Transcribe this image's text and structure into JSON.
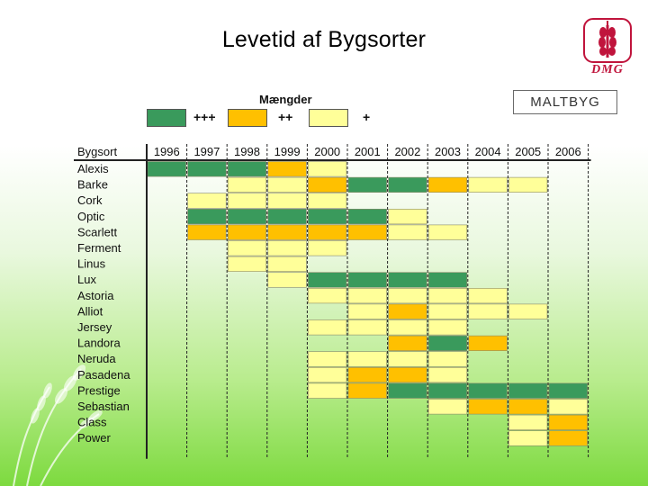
{
  "title": "Levetid af Bygsorter",
  "logo_text": "DMG",
  "badge": "MALTBYG",
  "legend": {
    "title": "Mængder",
    "items": [
      {
        "label": "+++",
        "color": "#3a9a5c"
      },
      {
        "label": "++",
        "color": "#ffc000"
      },
      {
        "label": "+",
        "color": "#ffff99"
      }
    ]
  },
  "chart_data": {
    "type": "table",
    "title": "Levetid af Bygsorter",
    "row_header": "Bygsort",
    "years": [
      "1996",
      "1997",
      "1998",
      "1999",
      "2000",
      "2001",
      "2002",
      "2003",
      "2004",
      "2005",
      "2006"
    ],
    "levels": {
      "3": "+++",
      "2": "++",
      "1": "+"
    },
    "colors": {
      "3": "#3a9a5c",
      "2": "#ffc000",
      "1": "#ffff99"
    },
    "varieties": [
      {
        "name": "Alexis",
        "values": [
          3,
          3,
          3,
          2,
          1,
          0,
          0,
          0,
          0,
          0,
          0
        ]
      },
      {
        "name": "Barke",
        "values": [
          0,
          0,
          1,
          1,
          2,
          3,
          3,
          2,
          1,
          1,
          0
        ]
      },
      {
        "name": "Cork",
        "values": [
          0,
          1,
          1,
          1,
          1,
          0,
          0,
          0,
          0,
          0,
          0
        ]
      },
      {
        "name": "Optic",
        "values": [
          0,
          3,
          3,
          3,
          3,
          3,
          1,
          0,
          0,
          0,
          0
        ]
      },
      {
        "name": "Scarlett",
        "values": [
          0,
          2,
          2,
          2,
          2,
          2,
          1,
          1,
          0,
          0,
          0
        ]
      },
      {
        "name": "Ferment",
        "values": [
          0,
          0,
          1,
          1,
          1,
          0,
          0,
          0,
          0,
          0,
          0
        ]
      },
      {
        "name": "Linus",
        "values": [
          0,
          0,
          1,
          1,
          0,
          0,
          0,
          0,
          0,
          0,
          0
        ]
      },
      {
        "name": "Lux",
        "values": [
          0,
          0,
          0,
          1,
          3,
          3,
          3,
          3,
          0,
          0,
          0
        ]
      },
      {
        "name": "Astoria",
        "values": [
          0,
          0,
          0,
          0,
          1,
          1,
          1,
          1,
          1,
          0,
          0
        ]
      },
      {
        "name": "Alliot",
        "values": [
          0,
          0,
          0,
          0,
          0,
          1,
          2,
          1,
          1,
          1,
          0
        ]
      },
      {
        "name": "Jersey",
        "values": [
          0,
          0,
          0,
          0,
          1,
          1,
          1,
          1,
          0,
          0,
          0
        ]
      },
      {
        "name": "Landora",
        "values": [
          0,
          0,
          0,
          0,
          0,
          0,
          2,
          3,
          2,
          0,
          0
        ]
      },
      {
        "name": "Neruda",
        "values": [
          0,
          0,
          0,
          0,
          1,
          1,
          1,
          1,
          0,
          0,
          0
        ]
      },
      {
        "name": "Pasadena",
        "values": [
          0,
          0,
          0,
          0,
          1,
          2,
          2,
          1,
          0,
          0,
          0
        ]
      },
      {
        "name": "Prestige",
        "values": [
          0,
          0,
          0,
          0,
          1,
          2,
          3,
          3,
          3,
          3,
          3
        ]
      },
      {
        "name": "Sebastian",
        "values": [
          0,
          0,
          0,
          0,
          0,
          0,
          0,
          1,
          2,
          2,
          1
        ]
      },
      {
        "name": "Class",
        "values": [
          0,
          0,
          0,
          0,
          0,
          0,
          0,
          0,
          0,
          1,
          2
        ]
      },
      {
        "name": "Power",
        "values": [
          0,
          0,
          0,
          0,
          0,
          0,
          0,
          0,
          0,
          1,
          2
        ]
      }
    ]
  }
}
